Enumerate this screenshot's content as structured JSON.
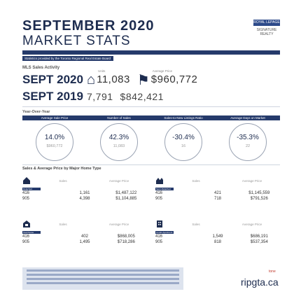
{
  "header": {
    "title_line1": "SEPTEMBER 2020",
    "title_line2": "MARKET STATS",
    "logo_text": "ROYAL LEPAGE",
    "logo_subtext": "SIGNATURE REALTY",
    "credit": "Statistics provided by the Toronto Regional Real Estate Board"
  },
  "mls": {
    "label": "MLS Sales Activity",
    "units_label": "Units",
    "avg_price_label": "Average Price",
    "current": {
      "year": "SEPT 2020",
      "units": "11,083",
      "avg_price": "$960,772"
    },
    "previous": {
      "year": "SEPT 2019",
      "units": "7,791",
      "avg_price": "$842,421"
    }
  },
  "yoy": {
    "label": "Year-Over-Year",
    "headers": [
      "Average Sale Price",
      "Number of Sales",
      "Sales-to-New Listings Ratio",
      "Average Days on Market"
    ],
    "items": [
      {
        "pct": "14.0%",
        "sub": "$960,772"
      },
      {
        "pct": "42.3%",
        "sub": "11,083"
      },
      {
        "pct": "-30.4%",
        "sub": "16"
      },
      {
        "pct": "-35.3%",
        "sub": "22"
      }
    ]
  },
  "types": {
    "label": "Sales & Average Price by Major Home Type",
    "col_sales": "Sales",
    "col_avg": "Average Price",
    "tables": [
      {
        "tag": "Detached",
        "rows": [
          {
            "region": "416",
            "sales": "1,161",
            "price": "$1,487,122"
          },
          {
            "region": "905",
            "sales": "4,398",
            "price": "$1,104,885"
          }
        ]
      },
      {
        "tag": "Semi-Detached",
        "rows": [
          {
            "region": "416",
            "sales": "421",
            "price": "$1,145,559"
          },
          {
            "region": "905",
            "sales": "718",
            "price": "$791,526"
          }
        ]
      },
      {
        "tag": "Townhouse",
        "rows": [
          {
            "region": "416",
            "sales": "402",
            "price": "$868,005"
          },
          {
            "region": "905",
            "sales": "1,495",
            "price": "$718,286"
          }
        ]
      },
      {
        "tag": "Condo Apartment",
        "rows": [
          {
            "region": "416",
            "sales": "1,549",
            "price": "$686,191"
          },
          {
            "region": "905",
            "sales": "818",
            "price": "$537,354"
          }
        ]
      }
    ]
  },
  "footer": {
    "site": "ripgta.ca",
    "small": "tone"
  },
  "colors": {
    "navy": "#253a6b",
    "text": "#1d2c4f"
  }
}
